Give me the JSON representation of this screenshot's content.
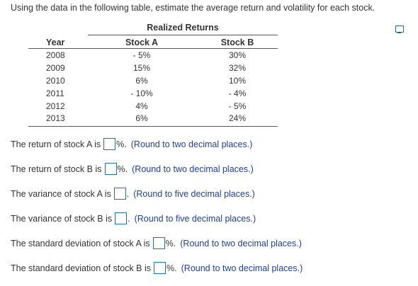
{
  "question": "Using the data in the following table, estimate the average return and volatility for each stock.",
  "table": {
    "group_header": "Realized Returns",
    "columns": [
      "Year",
      "Stock A",
      "Stock B"
    ],
    "rows": [
      {
        "year": "2008",
        "a": "- 5%",
        "b": "30%"
      },
      {
        "year": "2009",
        "a": "15%",
        "b": "32%"
      },
      {
        "year": "2010",
        "a": "6%",
        "b": "10%"
      },
      {
        "year": "2011",
        "a": "- 10%",
        "b": "- 4%"
      },
      {
        "year": "2012",
        "a": "4%",
        "b": "- 5%"
      },
      {
        "year": "2013",
        "a": "6%",
        "b": "24%"
      }
    ]
  },
  "prompts": [
    {
      "label": "The return of stock A is",
      "suffix": "%.",
      "hint": "(Round to two decimal places.)"
    },
    {
      "label": "The return of stock B is",
      "suffix": "%.",
      "hint": "(Round to two decimal places.)"
    },
    {
      "label": "The variance of stock A is",
      "suffix": ".",
      "hint": "(Round to five decimal places.)"
    },
    {
      "label": "The variance of stock B is",
      "suffix": ".",
      "hint": "(Round to five decimal places.)"
    },
    {
      "label": "The standard deviation of stock A is",
      "suffix": "%.",
      "hint": "(Round to two decimal places.)"
    },
    {
      "label": "The standard deviation of stock B is",
      "suffix": "%.",
      "hint": "(Round to two decimal places.)"
    }
  ],
  "icons": {
    "copy": "copy-to-spreadsheet-icon"
  },
  "colors": {
    "input_border": "#1f6fb5",
    "hint_text": "#1f3f99"
  }
}
